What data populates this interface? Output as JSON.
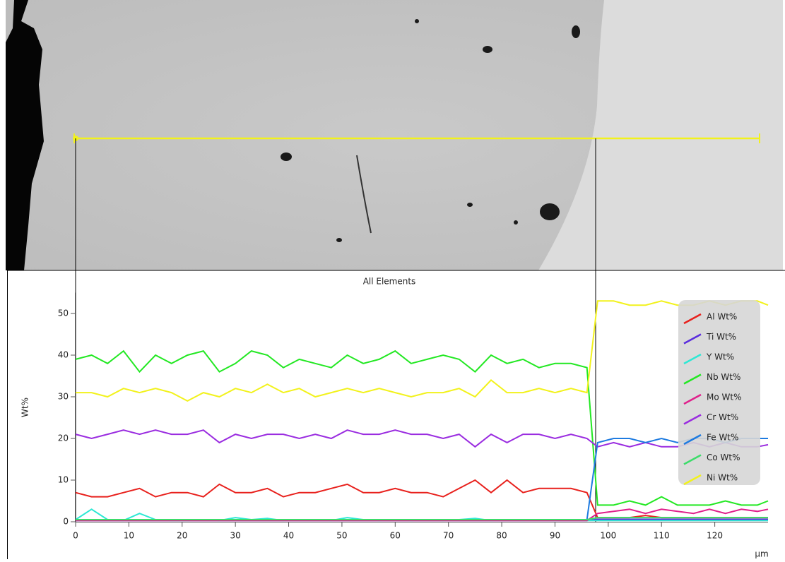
{
  "chart_data": {
    "type": "line",
    "title": "All Elements",
    "y_label": "Wt%",
    "x_label": "µm",
    "x": [
      0,
      3,
      6,
      9,
      12,
      15,
      18,
      21,
      24,
      27,
      30,
      33,
      36,
      39,
      42,
      45,
      48,
      51,
      54,
      57,
      60,
      63,
      66,
      69,
      72,
      75,
      78,
      81,
      84,
      87,
      90,
      93,
      96,
      98,
      101,
      104,
      107,
      110,
      113,
      116,
      119,
      122,
      125,
      128,
      130
    ],
    "xlim": [
      0,
      130
    ],
    "xticks": [
      0,
      10,
      20,
      30,
      40,
      50,
      60,
      70,
      80,
      90,
      100,
      110,
      120
    ],
    "ylim": [
      0,
      55
    ],
    "yticks": [
      0,
      10,
      20,
      30,
      40,
      50
    ],
    "legend": "right",
    "series": [
      {
        "name": "Al Wt%",
        "color": "#e8201c",
        "values": [
          7,
          6,
          6,
          7,
          8,
          6,
          7,
          7,
          6,
          9,
          7,
          7,
          8,
          6,
          7,
          7,
          8,
          9,
          7,
          7,
          8,
          7,
          7,
          6,
          8,
          10,
          7,
          10,
          7,
          8,
          8,
          8,
          7,
          1,
          1,
          1,
          1.5,
          1,
          1,
          1,
          1,
          1,
          1,
          1,
          1
        ]
      },
      {
        "name": "Ti Wt%",
        "color": "#5a2cde",
        "values": [
          0.3,
          0.3,
          0.3,
          0.3,
          0.3,
          0.3,
          0.3,
          0.3,
          0.3,
          0.3,
          0.3,
          0.3,
          0.3,
          0.3,
          0.3,
          0.3,
          0.3,
          0.3,
          0.3,
          0.3,
          0.3,
          0.3,
          0.3,
          0.3,
          0.3,
          0.3,
          0.3,
          0.3,
          0.3,
          0.3,
          0.3,
          0.3,
          0.3,
          0.6,
          0.6,
          0.6,
          0.6,
          0.6,
          0.6,
          0.6,
          0.6,
          0.6,
          0.6,
          0.6,
          0.6
        ]
      },
      {
        "name": "Y Wt%",
        "color": "#2de8d4",
        "values": [
          0.5,
          3,
          0.5,
          0.3,
          2,
          0.5,
          0.3,
          0.3,
          0.5,
          0.3,
          1,
          0.5,
          0.8,
          0.3,
          0.5,
          0.5,
          0.3,
          1,
          0.5,
          0.3,
          0.5,
          0.3,
          0.5,
          0.3,
          0.5,
          0.8,
          0.3,
          0.5,
          0.3,
          0.5,
          0.3,
          0.5,
          0.3,
          0.3,
          0.3,
          0.3,
          0.3,
          0.3,
          0.3,
          0.3,
          0.3,
          0.3,
          0.3,
          0.3,
          0.3
        ]
      },
      {
        "name": "Nb Wt%",
        "color": "#22e822",
        "values": [
          39,
          40,
          38,
          41,
          36,
          40,
          38,
          40,
          41,
          36,
          38,
          41,
          40,
          37,
          39,
          38,
          37,
          40,
          38,
          39,
          41,
          38,
          39,
          40,
          39,
          36,
          40,
          38,
          39,
          37,
          38,
          38,
          37,
          4,
          4,
          5,
          4,
          6,
          4,
          4,
          4,
          5,
          4,
          4,
          5
        ]
      },
      {
        "name": "Mo Wt%",
        "color": "#e0208c",
        "values": [
          0.3,
          0.3,
          0.3,
          0.3,
          0.3,
          0.3,
          0.3,
          0.3,
          0.3,
          0.3,
          0.3,
          0.3,
          0.3,
          0.3,
          0.3,
          0.3,
          0.3,
          0.3,
          0.3,
          0.3,
          0.3,
          0.3,
          0.3,
          0.3,
          0.3,
          0.3,
          0.3,
          0.3,
          0.3,
          0.3,
          0.3,
          0.3,
          0.3,
          2,
          2.5,
          3,
          2,
          3,
          2.5,
          2,
          3,
          2,
          3,
          2.5,
          3
        ]
      },
      {
        "name": "Cr Wt%",
        "color": "#9a2ce0",
        "values": [
          21,
          20,
          21,
          22,
          21,
          22,
          21,
          21,
          22,
          19,
          21,
          20,
          21,
          21,
          20,
          21,
          20,
          22,
          21,
          21,
          22,
          21,
          21,
          20,
          21,
          18,
          21,
          19,
          21,
          21,
          20,
          21,
          20,
          18,
          19,
          18,
          19,
          18,
          18,
          19,
          18,
          19,
          18,
          18,
          18.5
        ]
      },
      {
        "name": "Fe Wt%",
        "color": "#1e7be0",
        "values": [
          0.5,
          0.5,
          0.5,
          0.5,
          0.5,
          0.5,
          0.5,
          0.5,
          0.5,
          0.5,
          0.5,
          0.5,
          0.5,
          0.5,
          0.5,
          0.5,
          0.5,
          0.5,
          0.5,
          0.5,
          0.5,
          0.5,
          0.5,
          0.5,
          0.5,
          0.5,
          0.5,
          0.5,
          0.5,
          0.5,
          0.5,
          0.5,
          0.5,
          19,
          20,
          20,
          19,
          20,
          19,
          20,
          20,
          19,
          20,
          20,
          20
        ]
      },
      {
        "name": "Co Wt%",
        "color": "#3ddc6a",
        "values": [
          0.5,
          0.5,
          0.5,
          0.5,
          0.5,
          0.5,
          0.5,
          0.5,
          0.5,
          0.5,
          0.5,
          0.5,
          0.5,
          0.5,
          0.5,
          0.5,
          0.5,
          0.5,
          0.5,
          0.5,
          0.5,
          0.5,
          0.5,
          0.5,
          0.5,
          0.5,
          0.5,
          0.5,
          0.5,
          0.5,
          0.5,
          0.5,
          0.5,
          1,
          1,
          1,
          1,
          1,
          1,
          1,
          1,
          1,
          1,
          1,
          1
        ]
      },
      {
        "name": "Ni Wt%",
        "color": "#f2f21c",
        "values": [
          31,
          31,
          30,
          32,
          31,
          32,
          31,
          29,
          31,
          30,
          32,
          31,
          33,
          31,
          32,
          30,
          31,
          32,
          31,
          32,
          31,
          30,
          31,
          31,
          32,
          30,
          34,
          31,
          31,
          32,
          31,
          32,
          31,
          53,
          53,
          52,
          52,
          53,
          52,
          52,
          53,
          52,
          53,
          53,
          52
        ]
      }
    ]
  }
}
